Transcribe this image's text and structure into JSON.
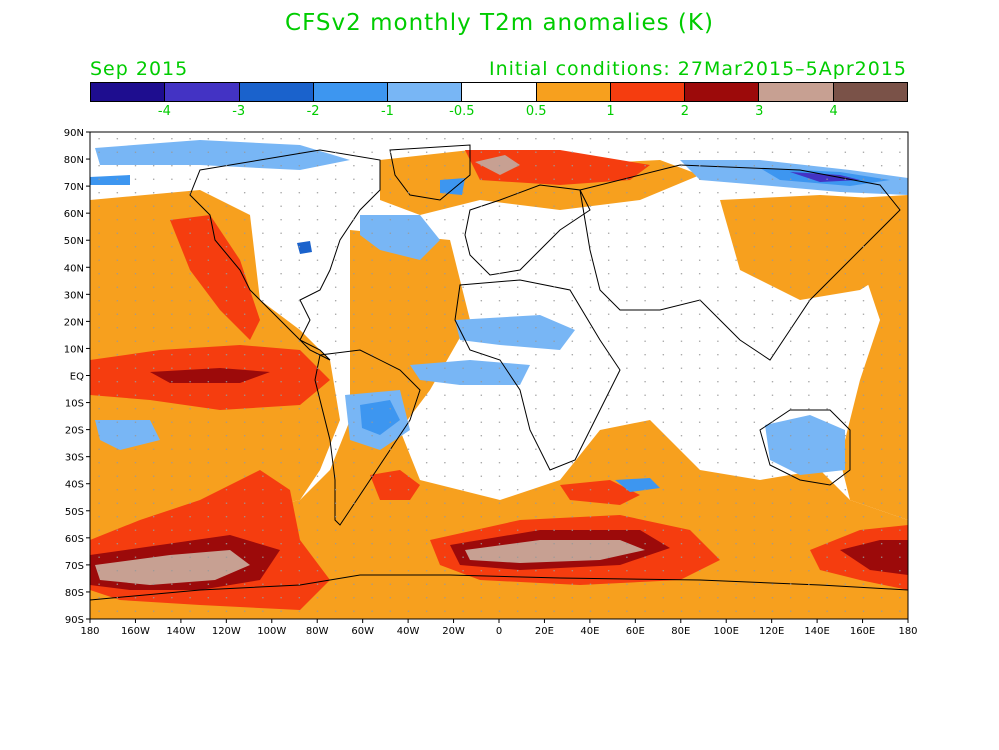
{
  "title": "CFSv2 monthly T2m anomalies (K)",
  "subtitle_left": "Sep 2015",
  "subtitle_right": "Initial conditions: 27Mar2015–5Apr2015",
  "colorbar": {
    "colors": [
      "#1e0d8f",
      "#4333c4",
      "#1a62cc",
      "#3d96f0",
      "#78b6f5",
      "#ffffff",
      "#f7a01e",
      "#f53d0f",
      "#9c0a0a",
      "#c7a092",
      "#7a5248"
    ],
    "labels": [
      "-4",
      "-3",
      "-2",
      "-1",
      "-0.5",
      "0.5",
      "1",
      "2",
      "3",
      "4"
    ]
  },
  "axes": {
    "lat_labels": [
      "90N",
      "80N",
      "70N",
      "60N",
      "50N",
      "40N",
      "30N",
      "20N",
      "10N",
      "EQ",
      "10S",
      "20S",
      "30S",
      "40S",
      "50S",
      "60S",
      "70S",
      "80S",
      "90S"
    ],
    "lon_labels": [
      "180",
      "160W",
      "140W",
      "120W",
      "100W",
      "80W",
      "60W",
      "40W",
      "20W",
      "0",
      "20E",
      "40E",
      "60E",
      "80E",
      "100E",
      "120E",
      "140E",
      "160E",
      "180"
    ]
  },
  "anomaly_regions": [
    {
      "name": "equatorial-pacific-warm-pool",
      "level": "3+"
    },
    {
      "name": "south-pacific-southern-ocean-warm",
      "level": "4+"
    },
    {
      "name": "south-atlantic-southern-ocean-warm",
      "level": "4+"
    },
    {
      "name": "barents-sea-warm",
      "level": "4+"
    },
    {
      "name": "arctic-siberia-cold",
      "level": "-4"
    },
    {
      "name": "brazil-cold",
      "level": "-2"
    },
    {
      "name": "australia-cold",
      "level": "-0.5"
    },
    {
      "name": "greenland-arctic-cold",
      "level": "-1"
    }
  ]
}
